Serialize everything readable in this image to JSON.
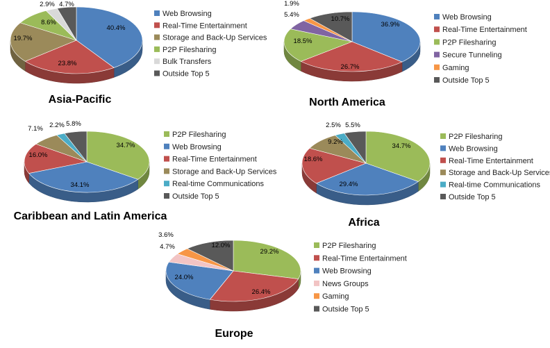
{
  "colors": {
    "Web Browsing": "#4f81bd",
    "Real-Time Entertainment": "#c0504d",
    "Storage and Back-Up Services": "#9b8a5a",
    "P2P Filesharing": "#9bbb59",
    "Bulk Transfers": "#d9d9d9",
    "Outside Top 5": "#595959",
    "Secure Tunneling": "#8064a2",
    "Gaming": "#f79646",
    "Real-time Communications": "#4bacc6",
    "News Groups": "#f2c4c4"
  },
  "chart_data": [
    {
      "type": "pie",
      "title": "Asia-Pacific",
      "categories": [
        "Web Browsing",
        "Real-Time Entertainment",
        "Storage and Back-Up Services",
        "P2P Filesharing",
        "Bulk Transfers",
        "Outside Top 5"
      ],
      "values": [
        40.4,
        23.8,
        19.7,
        8.6,
        2.9,
        4.7
      ],
      "labels": [
        "40.4%",
        "23.8%",
        "19.7%",
        "8.6%",
        "2.9%",
        "4.7%"
      ],
      "legend_items": [
        "Web Browsing",
        "Real-Time Entertainment",
        "Storage and Back-Up Services",
        "P2P Filesharing",
        "Bulk Transfers",
        "Outside Top 5"
      ],
      "legend_placement": "right"
    },
    {
      "type": "pie",
      "title": "North America",
      "categories": [
        "Web Browsing",
        "Real-Time Entertainment",
        "P2P Filesharing",
        "Secure Tunneling",
        "Gaming",
        "Outside Top 5"
      ],
      "values": [
        36.9,
        26.7,
        18.5,
        5.4,
        1.9,
        10.7
      ],
      "labels": [
        "36.9%",
        "26.7%",
        "18.5%",
        "5.4%",
        "1.9%",
        "10.7%"
      ],
      "legend_items": [
        "Web Browsing",
        "Real-Time Entertainment",
        "P2P Filesharing",
        "Secure Tunneling",
        "Gaming",
        "Outside Top 5"
      ],
      "legend_placement": "right"
    },
    {
      "type": "pie",
      "title": "Caribbean and Latin America",
      "categories": [
        "P2P Filesharing",
        "Web Browsing",
        "Real-Time Entertainment",
        "Storage and Back-Up Services",
        "Real-time Communications",
        "Outside Top 5"
      ],
      "values": [
        34.7,
        34.1,
        16.0,
        7.1,
        2.2,
        5.8
      ],
      "labels": [
        "34.7%",
        "34.1%",
        "16.0%",
        "7.1%",
        "2.2%",
        "5.8%"
      ],
      "legend_items": [
        "P2P Filesharing",
        "Web Browsing",
        "Real-Time Entertainment",
        "Storage and Back-Up Services",
        "Real-time Communications",
        "Outside Top 5"
      ],
      "legend_placement": "right"
    },
    {
      "type": "pie",
      "title": "Africa",
      "categories": [
        "P2P Filesharing",
        "Web Browsing",
        "Real-Time Entertainment",
        "Storage and Back-Up Services",
        "Real-time Communications",
        "Outside Top 5"
      ],
      "values": [
        34.7,
        29.4,
        18.6,
        9.2,
        2.5,
        5.5
      ],
      "labels": [
        "34.7%",
        "29.4%",
        "18.6%",
        "9.2%",
        "2.5%",
        "5.5%"
      ],
      "legend_items": [
        "P2P Filesharing",
        "Web Browsing",
        "Real-Time Entertainment",
        "Storage and Back-Up Services",
        "Real-time Communications",
        "Outside Top 5"
      ],
      "legend_placement": "right"
    },
    {
      "type": "pie",
      "title": "Europe",
      "categories": [
        "P2P Filesharing",
        "Real-Time Entertainment",
        "Web Browsing",
        "News Groups",
        "Gaming",
        "Outside Top 5"
      ],
      "values": [
        29.2,
        26.4,
        24.0,
        4.7,
        3.6,
        12.0
      ],
      "labels": [
        "29.2%",
        "26.4%",
        "24.0%",
        "4.7%",
        "3.6%",
        "12.0%"
      ],
      "legend_items": [
        "P2P Filesharing",
        "Real-Time Entertainment",
        "Web Browsing",
        "News Groups",
        "Gaming",
        "Outside Top 5"
      ],
      "legend_placement": "right"
    }
  ]
}
